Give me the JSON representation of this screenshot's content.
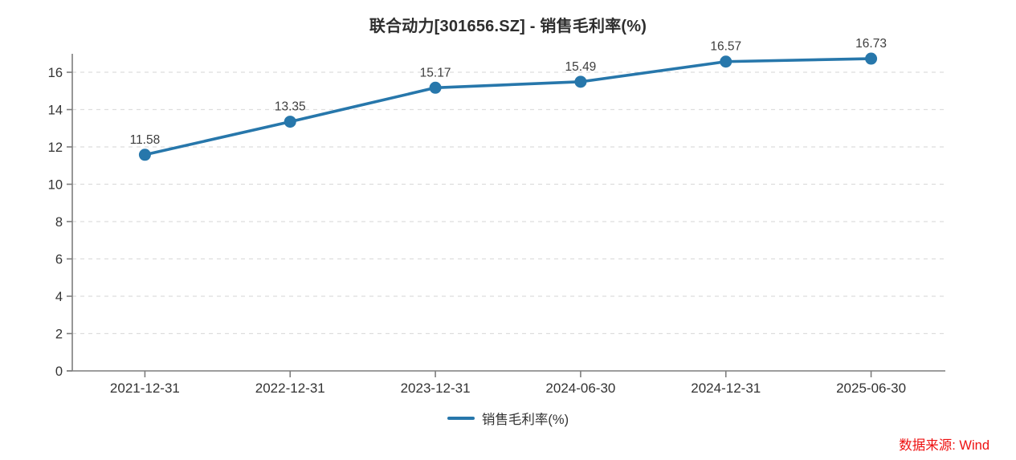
{
  "title": "联合动力[301656.SZ] - 销售毛利率(%)",
  "source_note": "数据来源: Wind",
  "colors": {
    "series": "#2777ab",
    "grid": "#dddddd",
    "axis": "#7d7d7d",
    "tick_label": "#333333",
    "data_label": "#3d3d3d",
    "title": "#2e2e2e",
    "source": "#ee1111",
    "background": "#ffffff"
  },
  "chart_data": {
    "type": "line",
    "title": "联合动力[301656.SZ] - 销售毛利率(%)",
    "categories": [
      "2021-12-31",
      "2022-12-31",
      "2023-12-31",
      "2024-06-30",
      "2024-12-31",
      "2025-06-30"
    ],
    "series": [
      {
        "name": "销售毛利率(%)",
        "values": [
          11.58,
          13.35,
          15.17,
          15.49,
          16.57,
          16.73
        ]
      }
    ],
    "xlabel": "",
    "ylabel": "",
    "ylim": [
      0,
      16
    ],
    "ytick_step": 2,
    "yticks": [
      0,
      2,
      4,
      6,
      8,
      10,
      12,
      14,
      16
    ],
    "grid": true,
    "grid_style": "dashed",
    "marker": "circle",
    "data_labels": true,
    "legend_position": "bottom"
  }
}
